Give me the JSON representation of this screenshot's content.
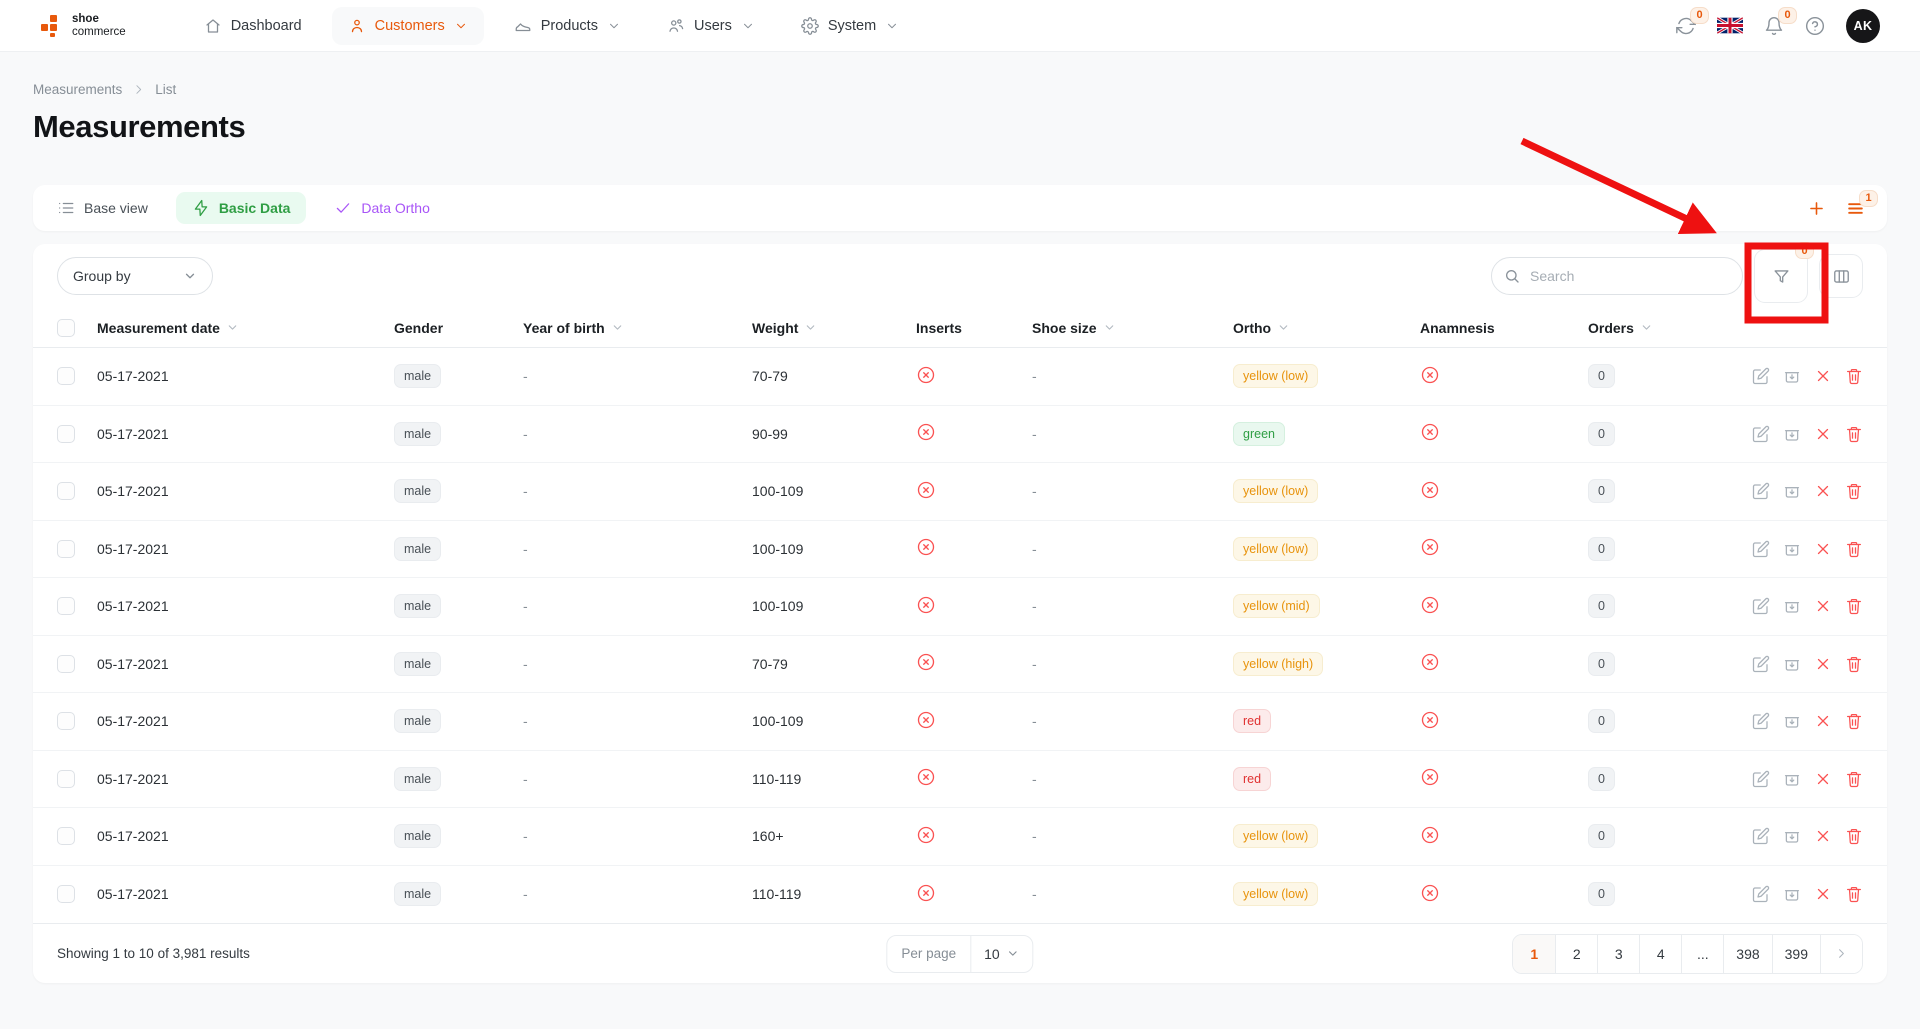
{
  "nav": {
    "logo_line1": "shoe",
    "logo_line2": "commerce",
    "items": [
      {
        "label": "Dashboard",
        "icon": "home",
        "dropdown": false,
        "active": false
      },
      {
        "label": "Customers",
        "icon": "person",
        "dropdown": true,
        "active": true
      },
      {
        "label": "Products",
        "icon": "shoe",
        "dropdown": true,
        "active": false
      },
      {
        "label": "Users",
        "icon": "users",
        "dropdown": true,
        "active": false
      },
      {
        "label": "System",
        "icon": "gear",
        "dropdown": true,
        "active": false
      }
    ],
    "sync_badge": "0",
    "notifications_badge": "0",
    "avatar_initials": "AK"
  },
  "breadcrumb": {
    "items": [
      "Measurements",
      "List"
    ]
  },
  "page": {
    "title": "Measurements"
  },
  "views": {
    "tabs": [
      {
        "label": "Base view",
        "icon": "list",
        "style": "default"
      },
      {
        "label": "Basic Data",
        "icon": "bolt",
        "style": "green"
      },
      {
        "label": "Data Ortho",
        "icon": "check",
        "style": "purple"
      }
    ],
    "saved_views_badge": "1"
  },
  "toolbar": {
    "group_by_label": "Group by",
    "search_placeholder": "Search",
    "filter_badge": "0"
  },
  "table": {
    "columns": [
      {
        "label": "Measurement date",
        "sortable": true
      },
      {
        "label": "Gender",
        "sortable": false
      },
      {
        "label": "Year of birth",
        "sortable": true
      },
      {
        "label": "Weight",
        "sortable": true
      },
      {
        "label": "Inserts",
        "sortable": false
      },
      {
        "label": "Shoe size",
        "sortable": true
      },
      {
        "label": "Ortho",
        "sortable": true
      },
      {
        "label": "Anamnesis",
        "sortable": false
      },
      {
        "label": "Orders",
        "sortable": true
      }
    ],
    "rows": [
      {
        "date": "05-17-2021",
        "gender": "male",
        "year_of_birth": "-",
        "weight": "70-79",
        "inserts": false,
        "shoe_size": "-",
        "ortho": {
          "label": "yellow (low)",
          "variant": "yellow"
        },
        "anamnesis": false,
        "orders": "0"
      },
      {
        "date": "05-17-2021",
        "gender": "male",
        "year_of_birth": "-",
        "weight": "90-99",
        "inserts": false,
        "shoe_size": "-",
        "ortho": {
          "label": "green",
          "variant": "green"
        },
        "anamnesis": false,
        "orders": "0"
      },
      {
        "date": "05-17-2021",
        "gender": "male",
        "year_of_birth": "-",
        "weight": "100-109",
        "inserts": false,
        "shoe_size": "-",
        "ortho": {
          "label": "yellow (low)",
          "variant": "yellow"
        },
        "anamnesis": false,
        "orders": "0"
      },
      {
        "date": "05-17-2021",
        "gender": "male",
        "year_of_birth": "-",
        "weight": "100-109",
        "inserts": false,
        "shoe_size": "-",
        "ortho": {
          "label": "yellow (low)",
          "variant": "yellow"
        },
        "anamnesis": false,
        "orders": "0"
      },
      {
        "date": "05-17-2021",
        "gender": "male",
        "year_of_birth": "-",
        "weight": "100-109",
        "inserts": false,
        "shoe_size": "-",
        "ortho": {
          "label": "yellow (mid)",
          "variant": "yellow"
        },
        "anamnesis": false,
        "orders": "0"
      },
      {
        "date": "05-17-2021",
        "gender": "male",
        "year_of_birth": "-",
        "weight": "70-79",
        "inserts": false,
        "shoe_size": "-",
        "ortho": {
          "label": "yellow (high)",
          "variant": "yellow"
        },
        "anamnesis": false,
        "orders": "0"
      },
      {
        "date": "05-17-2021",
        "gender": "male",
        "year_of_birth": "-",
        "weight": "100-109",
        "inserts": false,
        "shoe_size": "-",
        "ortho": {
          "label": "red",
          "variant": "red"
        },
        "anamnesis": false,
        "orders": "0"
      },
      {
        "date": "05-17-2021",
        "gender": "male",
        "year_of_birth": "-",
        "weight": "110-119",
        "inserts": false,
        "shoe_size": "-",
        "ortho": {
          "label": "red",
          "variant": "red"
        },
        "anamnesis": false,
        "orders": "0"
      },
      {
        "date": "05-17-2021",
        "gender": "male",
        "year_of_birth": "-",
        "weight": "160+",
        "inserts": false,
        "shoe_size": "-",
        "ortho": {
          "label": "yellow (low)",
          "variant": "yellow"
        },
        "anamnesis": false,
        "orders": "0"
      },
      {
        "date": "05-17-2021",
        "gender": "male",
        "year_of_birth": "-",
        "weight": "110-119",
        "inserts": false,
        "shoe_size": "-",
        "ortho": {
          "label": "yellow (low)",
          "variant": "yellow"
        },
        "anamnesis": false,
        "orders": "0"
      }
    ]
  },
  "footer": {
    "showing": "Showing 1 to 10 of 3,981 results",
    "per_page_label": "Per page",
    "per_page_value": "10",
    "pages": [
      "1",
      "2",
      "3",
      "4",
      "...",
      "398",
      "399"
    ],
    "active_page": "1"
  },
  "colors": {
    "accent": "#e8590c",
    "green": "#2f9e44",
    "purple": "#a855f7",
    "ortho_yellow": "#e8930c",
    "ortho_red": "#e03131",
    "annotation_red": "#ee1111"
  }
}
